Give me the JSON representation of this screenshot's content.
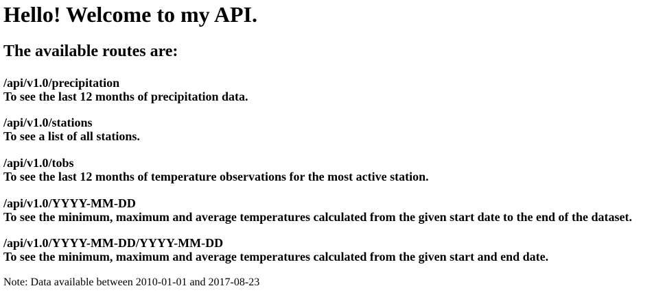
{
  "heading": "Hello! Welcome to my API.",
  "subheading": "The available routes are:",
  "routes": [
    {
      "path": "/api/v1.0/precipitation",
      "description": "To see the last 12 months of precipitation data."
    },
    {
      "path": "/api/v1.0/stations",
      "description": "To see a list of all stations."
    },
    {
      "path": "/api/v1.0/tobs",
      "description": "To see the last 12 months of temperature observations for the most active station."
    },
    {
      "path": "/api/v1.0/YYYY-MM-DD",
      "description": "To see the minimum, maximum and average temperatures calculated from the given start date to the end of the dataset."
    },
    {
      "path": "/api/v1.0/YYYY-MM-DD/YYYY-MM-DD",
      "description": "To see the minimum, maximum and average temperatures calculated from the given start and end date."
    }
  ],
  "note": "Note: Data available between 2010-01-01 and 2017-08-23"
}
